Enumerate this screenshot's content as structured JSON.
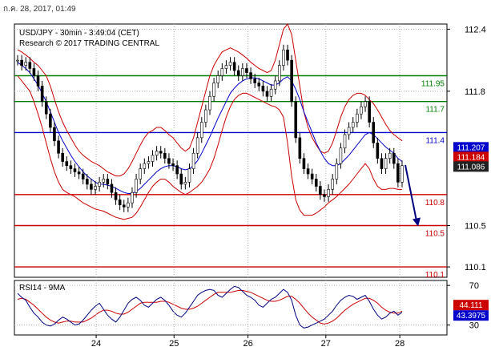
{
  "timestamp": "ก.ค. 28, 2017, 01:49",
  "chart_data": {
    "type": "line",
    "title": "USD/JPY - 30min - 3:49:04 (CET)",
    "subtitle": "Research © 2017 TRADING CENTRAL",
    "x_axis": {
      "ticks": [
        {
          "label": "24",
          "pos": 0.21
        },
        {
          "label": "25",
          "pos": 0.41
        },
        {
          "label": "26",
          "pos": 0.6
        },
        {
          "label": "27",
          "pos": 0.8
        },
        {
          "label": "28",
          "pos": 0.99
        }
      ]
    },
    "price_panel": {
      "ylim": [
        110.0,
        112.45
      ],
      "y_ticks": [
        112.4,
        111.8,
        110.5,
        110.1
      ],
      "y_tick_labels": [
        "112.4",
        "111.8",
        "110.5",
        "110.1"
      ],
      "levels": [
        {
          "value": 111.95,
          "label": "111.95",
          "color": "#008000"
        },
        {
          "value": 111.7,
          "label": "111.7",
          "color": "#008000"
        },
        {
          "value": 111.4,
          "label": "111.4",
          "color": "#0000cc"
        },
        {
          "value": 110.8,
          "label": "110.8",
          "color": "#cc0000"
        },
        {
          "value": 110.5,
          "label": "110.5",
          "color": "#cc0000"
        },
        {
          "value": 110.1,
          "label": "110.1",
          "color": "#cc0000"
        }
      ],
      "price_tags": [
        {
          "value": 111.207,
          "label": "111.207",
          "color": "#0000cc"
        },
        {
          "value": 111.184,
          "label": "111.184",
          "color": "#cc0000"
        },
        {
          "value": 111.086,
          "label": "111.086",
          "color": "#222222"
        }
      ],
      "close_series": [
        112.1,
        112.05,
        112.08,
        112.02,
        111.95,
        111.85,
        111.7,
        111.58,
        111.45,
        111.32,
        111.2,
        111.12,
        111.08,
        111.05,
        111.02,
        111.0,
        110.95,
        110.9,
        110.85,
        110.88,
        110.92,
        110.95,
        110.9,
        110.82,
        110.75,
        110.7,
        110.68,
        110.72,
        110.82,
        110.95,
        111.05,
        111.1,
        111.12,
        111.18,
        111.22,
        111.2,
        111.15,
        111.1,
        111.08,
        111.0,
        110.9,
        110.92,
        111.05,
        111.2,
        111.35,
        111.5,
        111.62,
        111.75,
        111.88,
        111.95,
        112.02,
        112.05,
        112.08,
        112.0,
        111.95,
        112.02,
        111.98,
        111.92,
        111.88,
        111.85,
        111.8,
        111.75,
        111.82,
        111.9,
        112.05,
        112.2,
        112.1,
        111.7,
        111.35,
        111.15,
        111.05,
        111.0,
        110.95,
        110.88,
        110.8,
        110.78,
        110.85,
        110.95,
        111.1,
        111.25,
        111.38,
        111.45,
        111.5,
        111.58,
        111.65,
        111.7,
        111.5,
        111.3,
        111.15,
        111.05,
        111.15,
        111.2,
        111.1,
        110.92,
        111.08
      ],
      "ma_series": [
        112.08,
        112.05,
        112.02,
        111.98,
        111.92,
        111.86,
        111.78,
        111.7,
        111.6,
        111.5,
        111.4,
        111.32,
        111.25,
        111.18,
        111.12,
        111.07,
        111.02,
        110.98,
        110.95,
        110.92,
        110.9,
        110.9,
        110.89,
        110.88,
        110.86,
        110.84,
        110.82,
        110.81,
        110.81,
        110.83,
        110.86,
        110.9,
        110.94,
        110.98,
        111.02,
        111.05,
        111.07,
        111.08,
        111.08,
        111.07,
        111.05,
        111.04,
        111.05,
        111.08,
        111.13,
        111.2,
        111.28,
        111.36,
        111.45,
        111.54,
        111.62,
        111.7,
        111.78,
        111.83,
        111.87,
        111.9,
        111.92,
        111.93,
        111.93,
        111.92,
        111.9,
        111.88,
        111.86,
        111.86,
        111.88,
        111.92,
        111.94,
        111.9,
        111.82,
        111.72,
        111.6,
        111.5,
        111.4,
        111.3,
        111.22,
        111.15,
        111.1,
        111.08,
        111.08,
        111.1,
        111.14,
        111.18,
        111.23,
        111.28,
        111.33,
        111.38,
        111.4,
        111.38,
        111.34,
        111.3,
        111.26,
        111.23,
        111.2,
        111.15,
        111.12
      ],
      "band_upper": [
        112.2,
        112.18,
        112.15,
        112.12,
        112.08,
        112.05,
        112.0,
        111.95,
        111.85,
        111.72,
        111.6,
        111.5,
        111.42,
        111.35,
        111.28,
        111.22,
        111.18,
        111.15,
        111.12,
        111.1,
        111.08,
        111.05,
        111.02,
        111.0,
        110.98,
        110.98,
        111.0,
        111.05,
        111.12,
        111.2,
        111.28,
        111.35,
        111.4,
        111.42,
        111.45,
        111.45,
        111.42,
        111.38,
        111.35,
        111.3,
        111.25,
        111.22,
        111.25,
        111.35,
        111.5,
        111.65,
        111.8,
        111.95,
        112.05,
        112.12,
        112.18,
        112.2,
        112.22,
        112.2,
        112.18,
        112.15,
        112.12,
        112.08,
        112.05,
        112.02,
        112.0,
        111.98,
        112.0,
        112.1,
        112.25,
        112.4,
        112.45,
        112.35,
        112.1,
        111.85,
        111.6,
        111.45,
        111.35,
        111.28,
        111.22,
        111.2,
        111.22,
        111.3,
        111.42,
        111.55,
        111.65,
        111.72,
        111.76,
        111.78,
        111.78,
        111.76,
        111.72,
        111.68,
        111.62,
        111.55,
        111.48,
        111.42,
        111.38,
        111.35,
        111.32
      ],
      "band_lower": [
        111.95,
        111.9,
        111.85,
        111.8,
        111.7,
        111.58,
        111.45,
        111.3,
        111.15,
        111.02,
        110.92,
        110.85,
        110.82,
        110.8,
        110.78,
        110.75,
        110.72,
        110.7,
        110.68,
        110.66,
        110.65,
        110.64,
        110.62,
        110.6,
        110.58,
        110.57,
        110.56,
        110.57,
        110.58,
        110.62,
        110.68,
        110.75,
        110.82,
        110.88,
        110.92,
        110.95,
        110.95,
        110.92,
        110.88,
        110.85,
        110.82,
        110.8,
        110.82,
        110.85,
        110.88,
        110.92,
        110.98,
        111.05,
        111.15,
        111.28,
        111.42,
        111.55,
        111.65,
        111.72,
        111.76,
        111.78,
        111.78,
        111.76,
        111.74,
        111.72,
        111.7,
        111.68,
        111.66,
        111.65,
        111.62,
        111.55,
        111.3,
        110.98,
        110.75,
        110.65,
        110.6,
        110.6,
        110.6,
        110.62,
        110.65,
        110.68,
        110.72,
        110.75,
        110.78,
        110.82,
        110.86,
        110.9,
        110.95,
        111.0,
        111.05,
        111.1,
        111.05,
        110.95,
        110.88,
        110.85,
        110.85,
        110.86,
        110.86,
        110.85,
        110.85
      ],
      "projection": {
        "from": 111.086,
        "to": 110.5
      }
    },
    "rsi_panel": {
      "title": "RSI14 - 9MA",
      "ylim": [
        20,
        75
      ],
      "y_ticks": [
        70,
        30
      ],
      "y_tick_labels": [
        "70",
        "30"
      ],
      "rsi_tags": [
        {
          "value": 44.111,
          "label": "44.111",
          "color": "#cc0000"
        },
        {
          "value": 43.3975,
          "label": "43.3975",
          "color": "#0000cc"
        }
      ],
      "rsi_series": [
        62,
        58,
        55,
        48,
        42,
        38,
        33,
        30,
        29,
        31,
        35,
        38,
        36,
        33,
        30,
        31,
        35,
        40,
        45,
        49,
        52,
        46,
        40,
        36,
        33,
        38,
        45,
        52,
        56,
        58,
        55,
        50,
        48,
        52,
        56,
        58,
        55,
        50,
        44,
        40,
        38,
        42,
        48,
        54,
        60,
        63,
        65,
        66,
        65,
        60,
        58,
        62,
        66,
        69,
        68,
        64,
        60,
        58,
        55,
        50,
        48,
        52,
        56,
        58,
        62,
        66,
        63,
        55,
        40,
        30,
        27,
        28,
        30,
        32,
        34,
        36,
        40,
        44,
        50,
        55,
        58,
        60,
        59,
        56,
        58,
        60,
        54,
        46,
        40,
        36,
        38,
        42,
        44,
        40,
        43
      ],
      "ma_series": [
        56,
        57,
        56,
        53,
        50,
        46,
        42,
        38,
        35,
        33,
        32,
        33,
        34,
        34,
        33,
        33,
        33,
        35,
        37,
        40,
        43,
        45,
        45,
        44,
        42,
        41,
        41,
        43,
        46,
        49,
        52,
        53,
        53,
        53,
        53,
        54,
        54,
        53,
        51,
        49,
        47,
        46,
        46,
        47,
        49,
        52,
        55,
        58,
        61,
        63,
        63,
        63,
        63,
        64,
        65,
        65,
        64,
        63,
        61,
        59,
        57,
        55,
        54,
        54,
        55,
        57,
        59,
        59,
        56,
        52,
        47,
        42,
        38,
        35,
        32,
        31,
        32,
        34,
        37,
        41,
        45,
        48,
        51,
        53,
        55,
        57,
        57,
        55,
        52,
        48,
        45,
        43,
        42,
        42,
        44
      ]
    }
  }
}
